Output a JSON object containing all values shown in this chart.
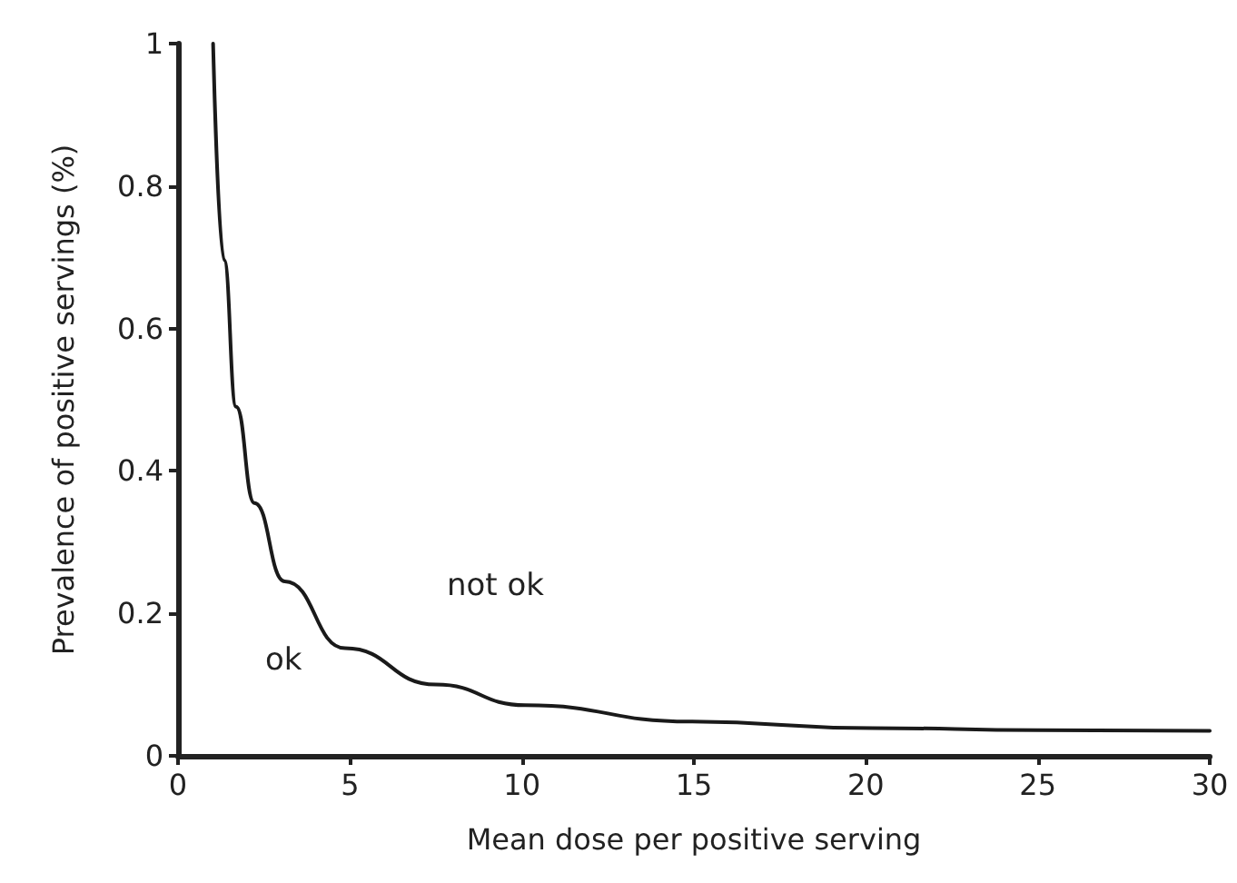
{
  "chart_data": {
    "type": "line",
    "xlabel": "Mean dose per positive serving",
    "ylabel": "Prevalence of positive servings (%)",
    "x": [
      1.02,
      1.34,
      1.69,
      2.22,
      3.1,
      4.86,
      7.5,
      10.1,
      14.9,
      20.2,
      25,
      30
    ],
    "series": [
      {
        "color": "#1a1a1a",
        "values": [
          1.0,
          0.696,
          0.49,
          0.355,
          0.245,
          0.151,
          0.1,
          0.071,
          0.048,
          0.039,
          0.036,
          0.035
        ]
      }
    ],
    "xlim": [
      0,
      30
    ],
    "xticks": [
      0,
      5,
      10,
      15,
      20,
      25,
      30
    ],
    "ylim": [
      0,
      1
    ],
    "yticks": [
      0,
      0.2,
      0.4,
      0.6,
      0.8,
      1
    ],
    "annotations": [
      "not ok",
      "ok"
    ],
    "grid": false,
    "marker": "none",
    "line_style": "solid"
  }
}
